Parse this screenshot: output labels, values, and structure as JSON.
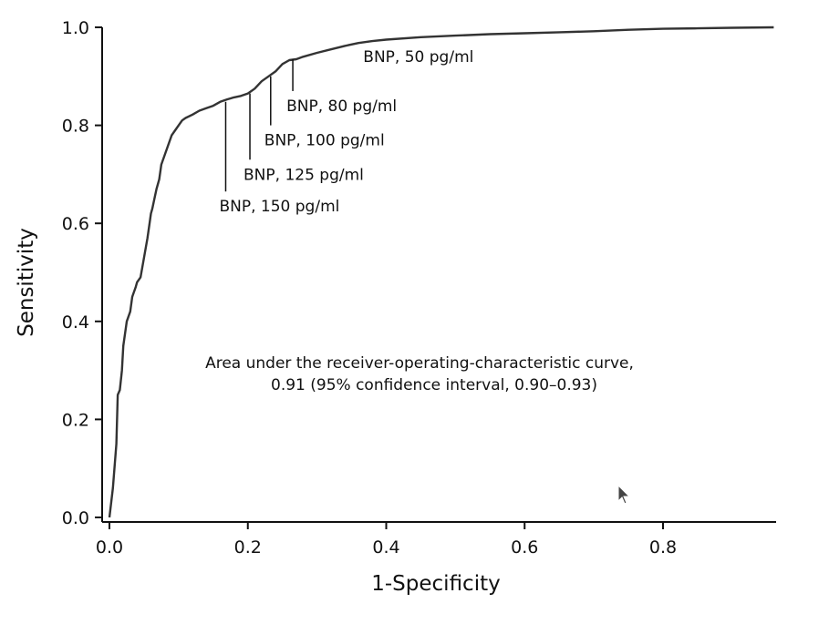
{
  "chart_data": {
    "type": "line",
    "xlabel": "1-Specificity",
    "ylabel": "Sensitivity",
    "xlim": [
      0.0,
      0.96
    ],
    "ylim": [
      0.0,
      1.0
    ],
    "x_ticks": [
      "0.0",
      "0.2",
      "0.4",
      "0.6",
      "0.8"
    ],
    "y_ticks": [
      "0.0",
      "0.2",
      "0.4",
      "0.6",
      "0.8",
      "1.0"
    ],
    "grid": false,
    "line_color": "#333333",
    "series": [
      {
        "x": [
          0.0,
          0.005,
          0.01,
          0.012,
          0.015,
          0.018,
          0.02,
          0.025,
          0.03,
          0.033,
          0.038,
          0.04,
          0.045,
          0.05,
          0.055,
          0.058,
          0.06,
          0.062,
          0.065,
          0.068,
          0.072,
          0.075,
          0.08,
          0.085,
          0.09,
          0.095,
          0.1,
          0.105,
          0.11,
          0.12,
          0.13,
          0.14,
          0.15,
          0.16,
          0.17,
          0.18,
          0.19,
          0.2,
          0.21,
          0.22,
          0.23,
          0.24,
          0.25,
          0.26,
          0.27,
          0.28,
          0.3,
          0.32,
          0.34,
          0.36,
          0.38,
          0.4,
          0.45,
          0.5,
          0.55,
          0.6,
          0.65,
          0.7,
          0.75,
          0.8,
          0.85,
          0.9,
          0.96
        ],
        "y": [
          0.0,
          0.06,
          0.15,
          0.25,
          0.26,
          0.3,
          0.35,
          0.4,
          0.42,
          0.45,
          0.47,
          0.48,
          0.49,
          0.53,
          0.57,
          0.6,
          0.62,
          0.63,
          0.65,
          0.67,
          0.69,
          0.72,
          0.74,
          0.76,
          0.78,
          0.79,
          0.8,
          0.81,
          0.815,
          0.822,
          0.83,
          0.835,
          0.84,
          0.848,
          0.853,
          0.857,
          0.86,
          0.865,
          0.875,
          0.89,
          0.9,
          0.91,
          0.925,
          0.933,
          0.935,
          0.94,
          0.948,
          0.955,
          0.962,
          0.968,
          0.972,
          0.975,
          0.98,
          0.983,
          0.986,
          0.988,
          0.99,
          0.992,
          0.995,
          0.997,
          0.998,
          0.999,
          1.0
        ]
      }
    ],
    "annotations": [
      {
        "text": "BNP, 50 pg/ml",
        "x": 0.376,
        "y": 0.97,
        "tick_to": 0.97
      },
      {
        "text": "BNP, 80 pg/ml",
        "x": 0.265,
        "y": 0.935,
        "tick_to": 0.87
      },
      {
        "text": "BNP, 100 pg/ml",
        "x": 0.233,
        "y": 0.9,
        "tick_to": 0.8
      },
      {
        "text": "BNP, 125 pg/ml",
        "x": 0.203,
        "y": 0.865,
        "tick_to": 0.73
      },
      {
        "text": "BNP, 150 pg/ml",
        "x": 0.168,
        "y": 0.848,
        "tick_to": 0.665
      }
    ],
    "auc_text_line1": "Area under the receiver-operating-characteristic curve,",
    "auc_text_line2": "0.91 (95% confidence interval, 0.90–0.93)"
  },
  "cursor_icon": "mouse-pointer-icon"
}
